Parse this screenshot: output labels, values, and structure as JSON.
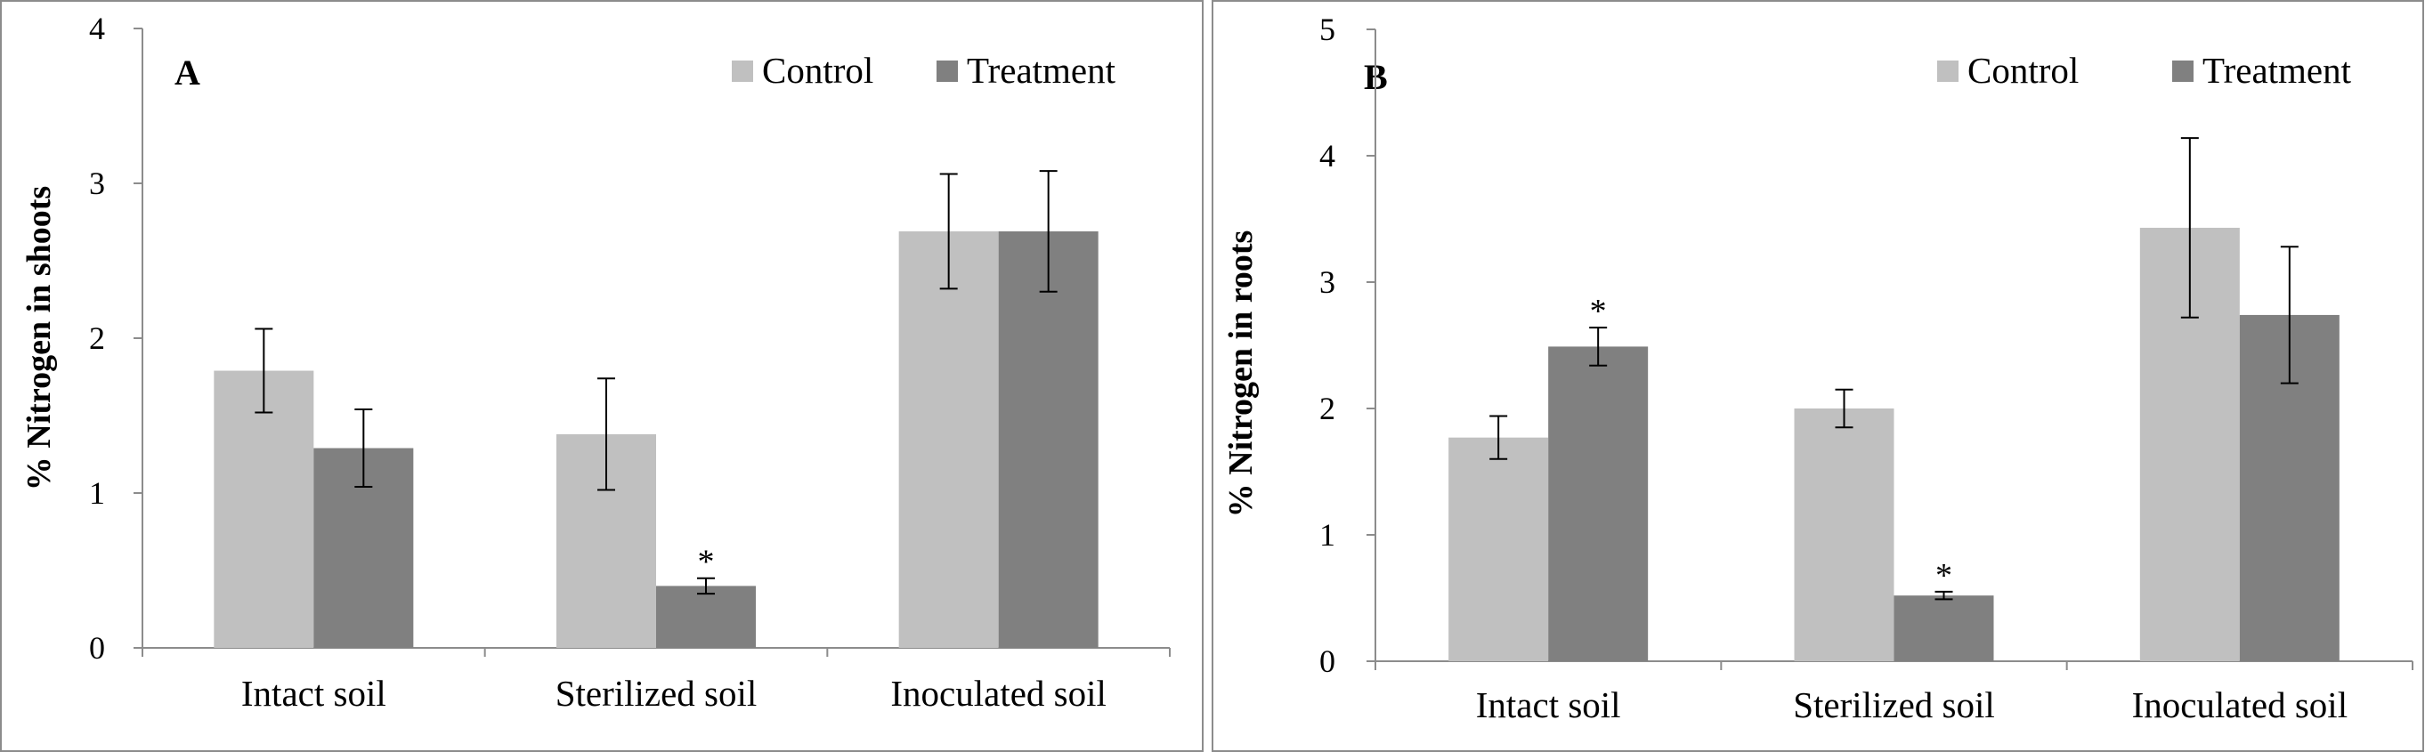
{
  "colors": {
    "control": "#c0c0c0",
    "treatment": "#808080",
    "axis": "#8c8c8c",
    "error": "#000000"
  },
  "chart_data": [
    {
      "type": "bar",
      "panel_label": "A",
      "ylabel": "% Nitrogen in shoots",
      "ylim": [
        0,
        4
      ],
      "yticks": [
        "0",
        "1",
        "2",
        "3",
        "4"
      ],
      "categories": [
        "Intact soil",
        "Sterilized soil",
        "Inoculated soil"
      ],
      "legend": {
        "placement": "top-right"
      },
      "series": [
        {
          "name": "Control",
          "values": [
            1.79,
            1.38,
            2.69
          ],
          "errors": [
            0.27,
            0.36,
            0.37
          ],
          "marks": [
            "",
            "",
            ""
          ]
        },
        {
          "name": "Treatment",
          "values": [
            1.29,
            0.4,
            2.69
          ],
          "errors": [
            0.25,
            0.05,
            0.39
          ],
          "marks": [
            "",
            "*",
            ""
          ]
        }
      ]
    },
    {
      "type": "bar",
      "panel_label": "B",
      "ylabel": "% Nitrogen in roots",
      "ylim": [
        0,
        5
      ],
      "yticks": [
        "0",
        "1",
        "2",
        "3",
        "4",
        "5"
      ],
      "categories": [
        "Intact soil",
        "Sterilized soil",
        "Inoculated soil"
      ],
      "legend": {
        "placement": "top-right"
      },
      "series": [
        {
          "name": "Control",
          "values": [
            1.77,
            2.0,
            3.43
          ],
          "errors": [
            0.17,
            0.15,
            0.71
          ],
          "marks": [
            "",
            "",
            ""
          ]
        },
        {
          "name": "Treatment",
          "values": [
            2.49,
            0.52,
            2.74
          ],
          "errors": [
            0.15,
            0.03,
            0.54
          ],
          "marks": [
            "*",
            "*",
            ""
          ]
        }
      ]
    }
  ]
}
